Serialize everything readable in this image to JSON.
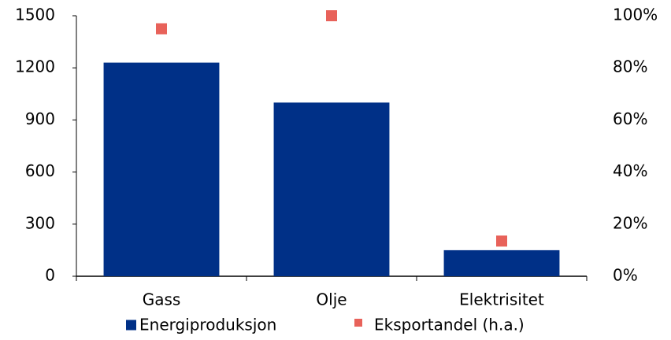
{
  "chart_data": {
    "type": "bar",
    "categories": [
      "Gass",
      "Olje",
      "Elektrisitet"
    ],
    "series": [
      {
        "name": "Energiproduksjon",
        "color": "#003087",
        "values": [
          1230,
          1000,
          150
        ]
      },
      {
        "name": "Eksportandel (h.a.)",
        "color": "#e8625a",
        "type": "scatter",
        "axis": "y2",
        "values": [
          95,
          100,
          13.5
        ]
      }
    ],
    "ylim": [
      0,
      1500
    ],
    "yticks": [
      0,
      300,
      600,
      900,
      1200,
      1500
    ],
    "y2lim": [
      0,
      100
    ],
    "y2ticks": [
      {
        "value": 0,
        "label": "0%"
      },
      {
        "value": 20,
        "label": "20%"
      },
      {
        "value": 40,
        "label": "40%"
      },
      {
        "value": 60,
        "label": "60%"
      },
      {
        "value": 80,
        "label": "80%"
      },
      {
        "value": 100,
        "label": "100%"
      }
    ],
    "grid": false,
    "legend": "bottom"
  }
}
